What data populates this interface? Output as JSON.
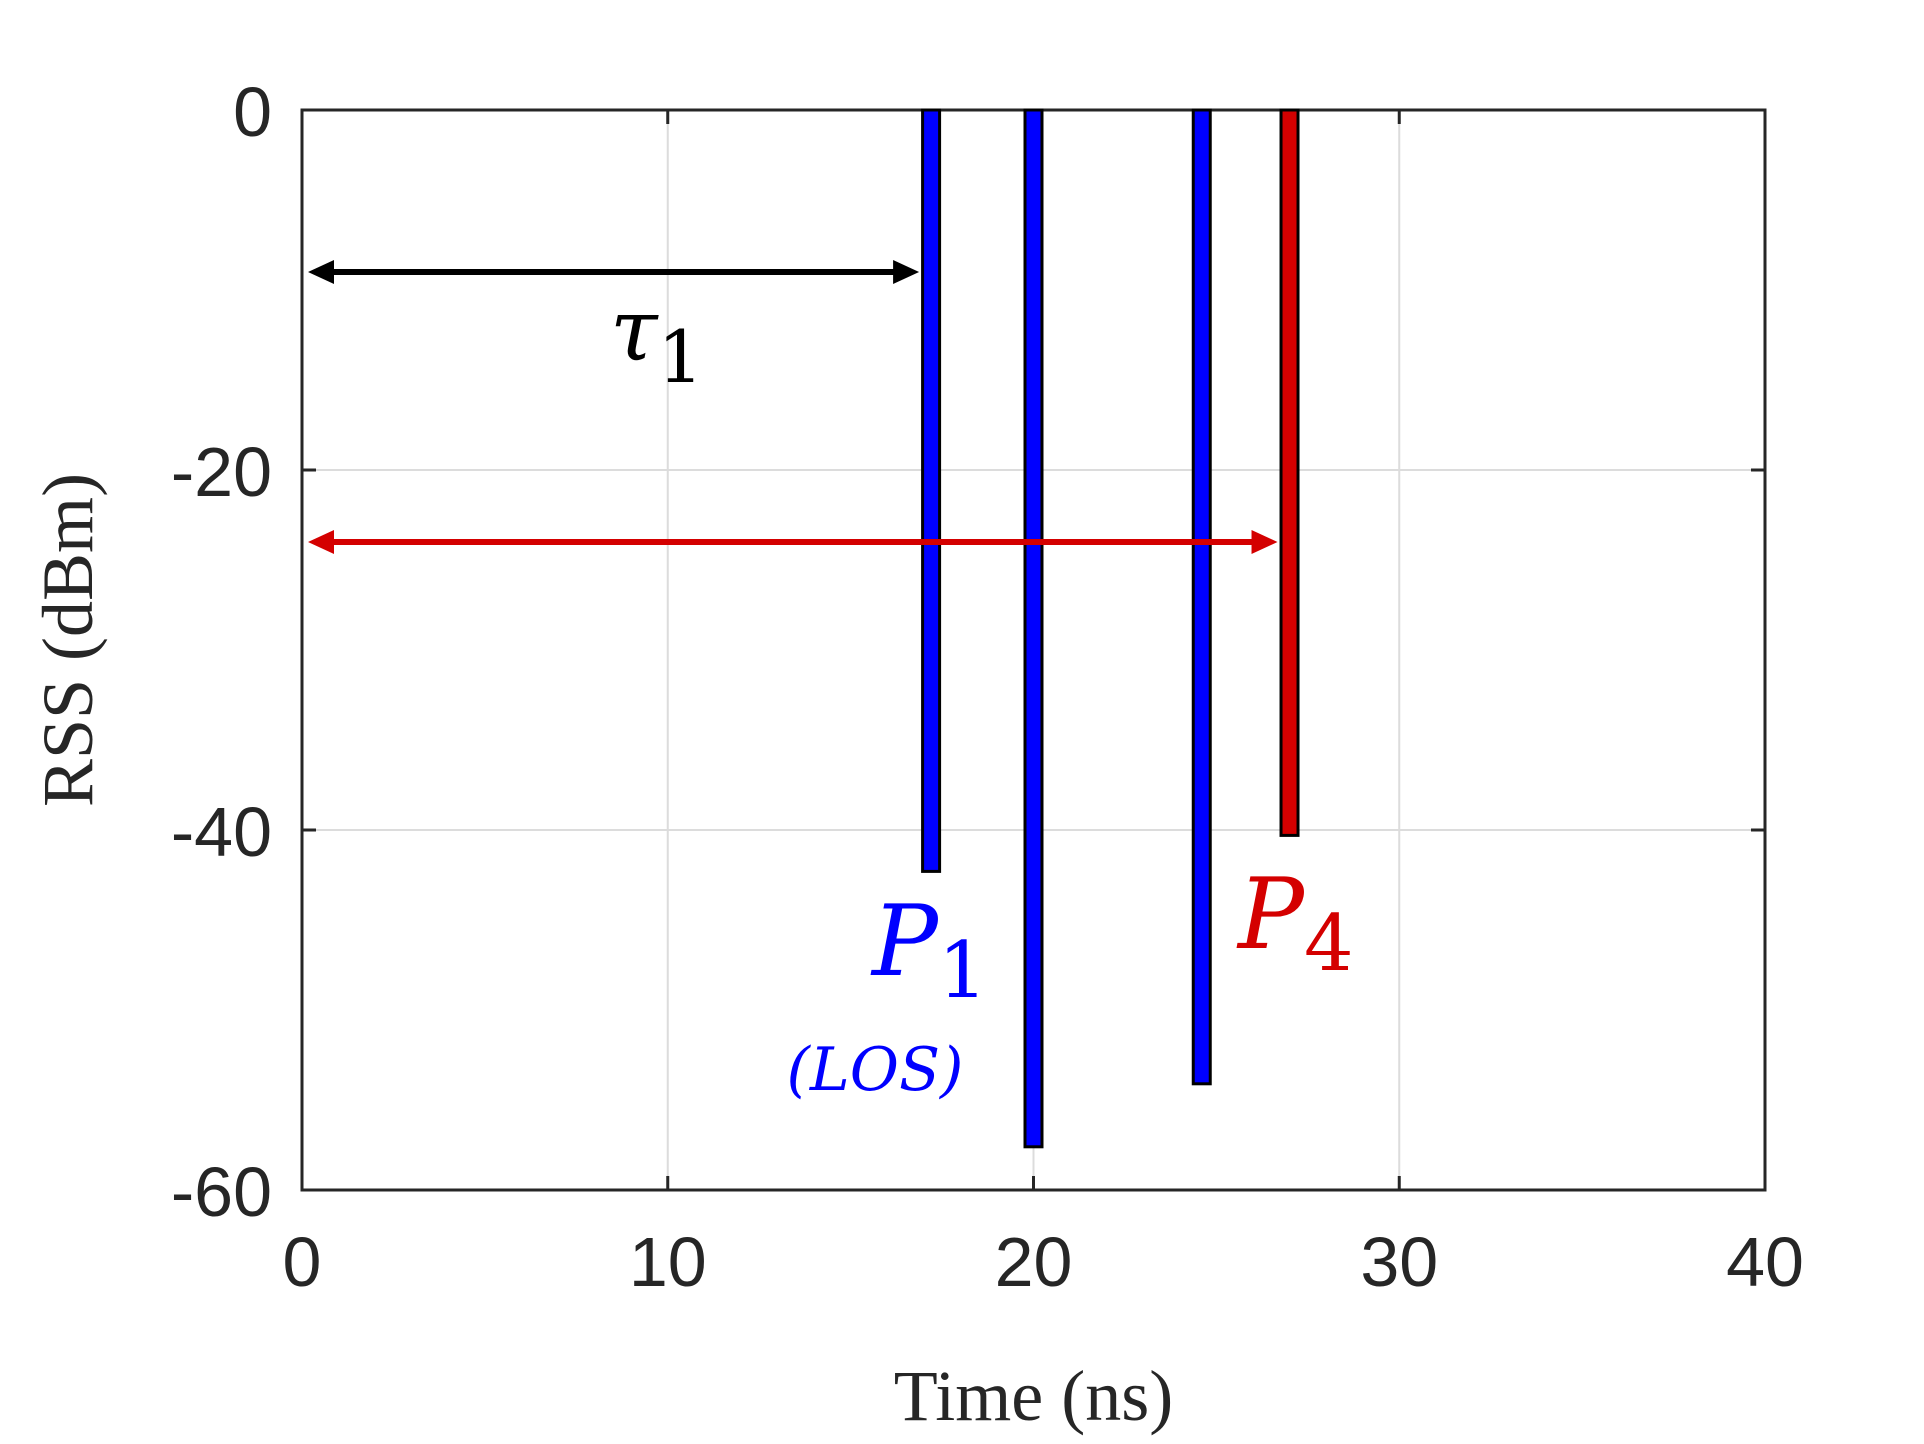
{
  "chart_data": {
    "type": "bar",
    "xlabel": "Time (ns)",
    "ylabel": "RSS (dBm)",
    "xlim": [
      0,
      40
    ],
    "ylim": [
      -60,
      0
    ],
    "xticks": [
      "0",
      "10",
      "20",
      "30",
      "40"
    ],
    "yticks": [
      "0",
      "-20",
      "-40",
      "-60"
    ],
    "grid": true,
    "colors": {
      "blue": "#0000ff",
      "red": "#d40000",
      "black": "#000000"
    },
    "series": [
      {
        "x": 17.2,
        "y": -42.3,
        "color": "#0000ff"
      },
      {
        "x": 20.0,
        "y": -57.6,
        "color": "#0000ff"
      },
      {
        "x": 24.6,
        "y": -54.1,
        "color": "#0000ff"
      },
      {
        "x": 27.0,
        "y": -40.3,
        "color": "#d40000"
      }
    ],
    "annotations": {
      "tau": {
        "main": "τ",
        "sub": "1",
        "color": "#000000",
        "x_from": 0,
        "x_to": 17.2,
        "y": -9
      },
      "tau4_arrow": {
        "color": "#d40000",
        "x_from": 0,
        "x_to": 27.0,
        "y": -24
      },
      "p1": {
        "main": "P",
        "sub": "1",
        "note": "(LOS)",
        "color": "#0000ff"
      },
      "p4": {
        "main": "P",
        "sub": "4",
        "color": "#d40000"
      }
    }
  }
}
